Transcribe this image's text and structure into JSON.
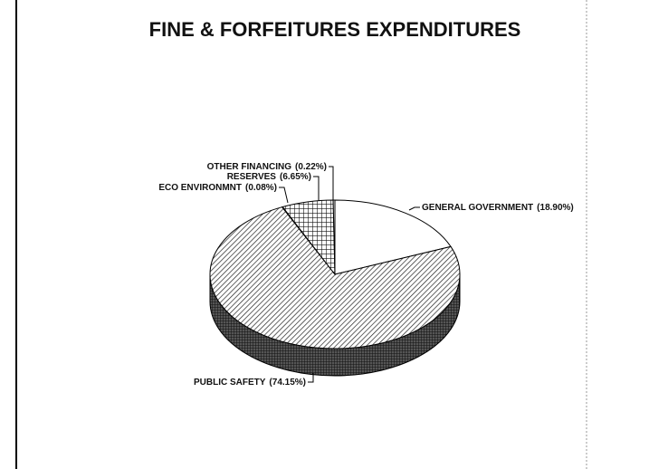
{
  "chart_data": {
    "type": "pie",
    "title": "FINE & FORFEITURES EXPENDITURES",
    "categories": [
      "GENERAL GOVERNMENT",
      "PUBLIC SAFETY",
      "ECO ENVIRONMNT",
      "RESERVES",
      "OTHER FINANCING"
    ],
    "values": [
      18.9,
      74.15,
      0.08,
      6.65,
      0.22
    ],
    "value_labels": [
      "(18.90%)",
      "(74.15%)",
      "(0.08%)",
      "(6.65%)",
      "(0.22%)"
    ]
  }
}
